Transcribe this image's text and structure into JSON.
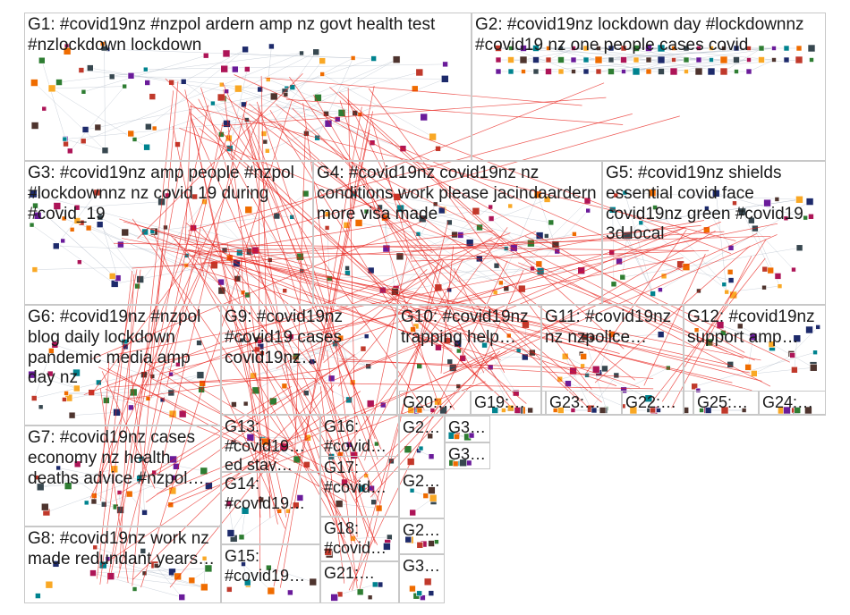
{
  "groups": [
    {
      "id": "G1",
      "label": "G1: #covid19nz #nzpol ardern amp nz govt health test #nzlockdown lockdown"
    },
    {
      "id": "G2",
      "label": "G2: #covid19nz lockdown day #lockdownnz #covid19 nz one people cases covid"
    },
    {
      "id": "G3",
      "label": "G3: #covid19nz amp people #nzpol #lockdownnz nz covid 19 during #covid_19"
    },
    {
      "id": "G4",
      "label": "G4: #covid19nz covid19nz nz conditions work please jacindaardern more visa made"
    },
    {
      "id": "G5",
      "label": "G5: #covid19nz shields essential covid face covid19nz green #covid19 3d local"
    },
    {
      "id": "G6",
      "label": "G6: #covid19nz #nzpol blog daily lockdown pandemic media amp day nz"
    },
    {
      "id": "G9",
      "label": "G9: #covid19nz #covid19 cases covid19nz…"
    },
    {
      "id": "G10",
      "label": "G10: #covid19nz trapping help…"
    },
    {
      "id": "G11",
      "label": "G11: #covid19nz nz nzpolice…"
    },
    {
      "id": "G12",
      "label": "G12: #covid19nz support amp…"
    },
    {
      "id": "G7",
      "label": "G7: #covid19nz cases economy nz health deaths advice #nzpol…"
    },
    {
      "id": "G13",
      "label": "G13: #covid19… ed stay…"
    },
    {
      "id": "G16",
      "label": "G16: #covid…"
    },
    {
      "id": "G20",
      "label": "G20:…"
    },
    {
      "id": "G19",
      "label": "G19:…"
    },
    {
      "id": "G23",
      "label": "G23:…"
    },
    {
      "id": "G22",
      "label": "G22:…"
    },
    {
      "id": "G25",
      "label": "G25:…"
    },
    {
      "id": "G24",
      "label": "G24:…"
    },
    {
      "id": "G2x1",
      "label": "G2…"
    },
    {
      "id": "G3x1",
      "label": "G3…"
    },
    {
      "id": "G3x2",
      "label": "G3…"
    },
    {
      "id": "G14",
      "label": "G14: #covid19…"
    },
    {
      "id": "G17",
      "label": "G17: #covid…"
    },
    {
      "id": "G2x2",
      "label": "G2…"
    },
    {
      "id": "G8",
      "label": "G8: #covid19nz work nz made redundant years…"
    },
    {
      "id": "G18",
      "label": "G18: #covid…"
    },
    {
      "id": "G2x3",
      "label": "G2…"
    },
    {
      "id": "G15",
      "label": "G15: #covid19…"
    },
    {
      "id": "G21",
      "label": "G21:…"
    },
    {
      "id": "G3x3",
      "label": "G3…"
    }
  ],
  "colors": {
    "cross_edges": "#e8201a",
    "intra_edges": "#9aa7b8",
    "panel_border": "#c8c8c8",
    "node_palette": [
      "#1d2a6b",
      "#c0392b",
      "#2e7d32",
      "#6a1b9a",
      "#00838f",
      "#ef6c00",
      "#37474f",
      "#ad1457",
      "#f9a825",
      "#4e342e"
    ]
  }
}
